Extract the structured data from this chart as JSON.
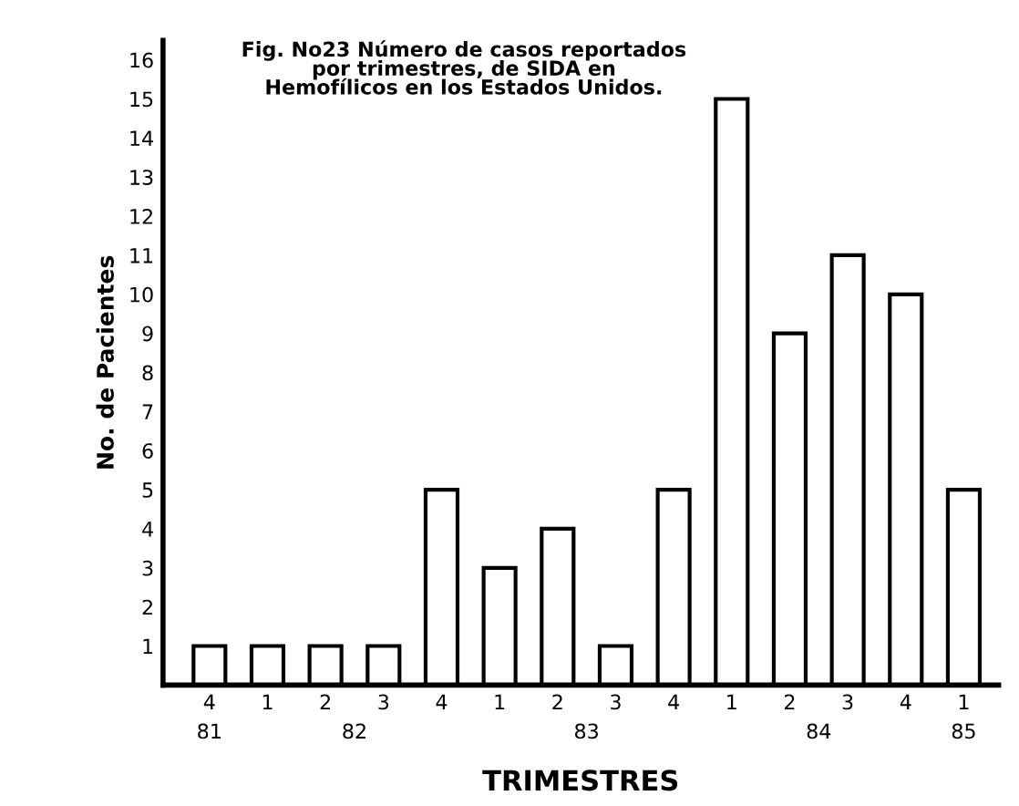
{
  "chart_data": {
    "type": "bar",
    "title": "Fig. No23 Número de casos reportados\npor trimestres, de SIDA en\nHemofílicos en los Estados Unidos.",
    "xlabel": "TRIMESTRES",
    "ylabel": "No. de Pacientes",
    "categories": [
      "4",
      "1",
      "2",
      "3",
      "4",
      "1",
      "2",
      "3",
      "4",
      "1",
      "2",
      "3",
      "4",
      "1"
    ],
    "values": [
      1,
      1,
      1,
      1,
      5,
      3,
      4,
      1,
      5,
      15,
      9,
      11,
      10,
      5
    ],
    "color": "#ffffff",
    "annotations": [
      "81",
      "82",
      "83",
      "84",
      "85"
    ],
    "ylim": [
      0,
      16.5
    ],
    "yticks": [
      1,
      2,
      3,
      4,
      5,
      6,
      7,
      8,
      9,
      10,
      11,
      12,
      13,
      14,
      15,
      16
    ],
    "grid": false,
    "legend": false
  }
}
